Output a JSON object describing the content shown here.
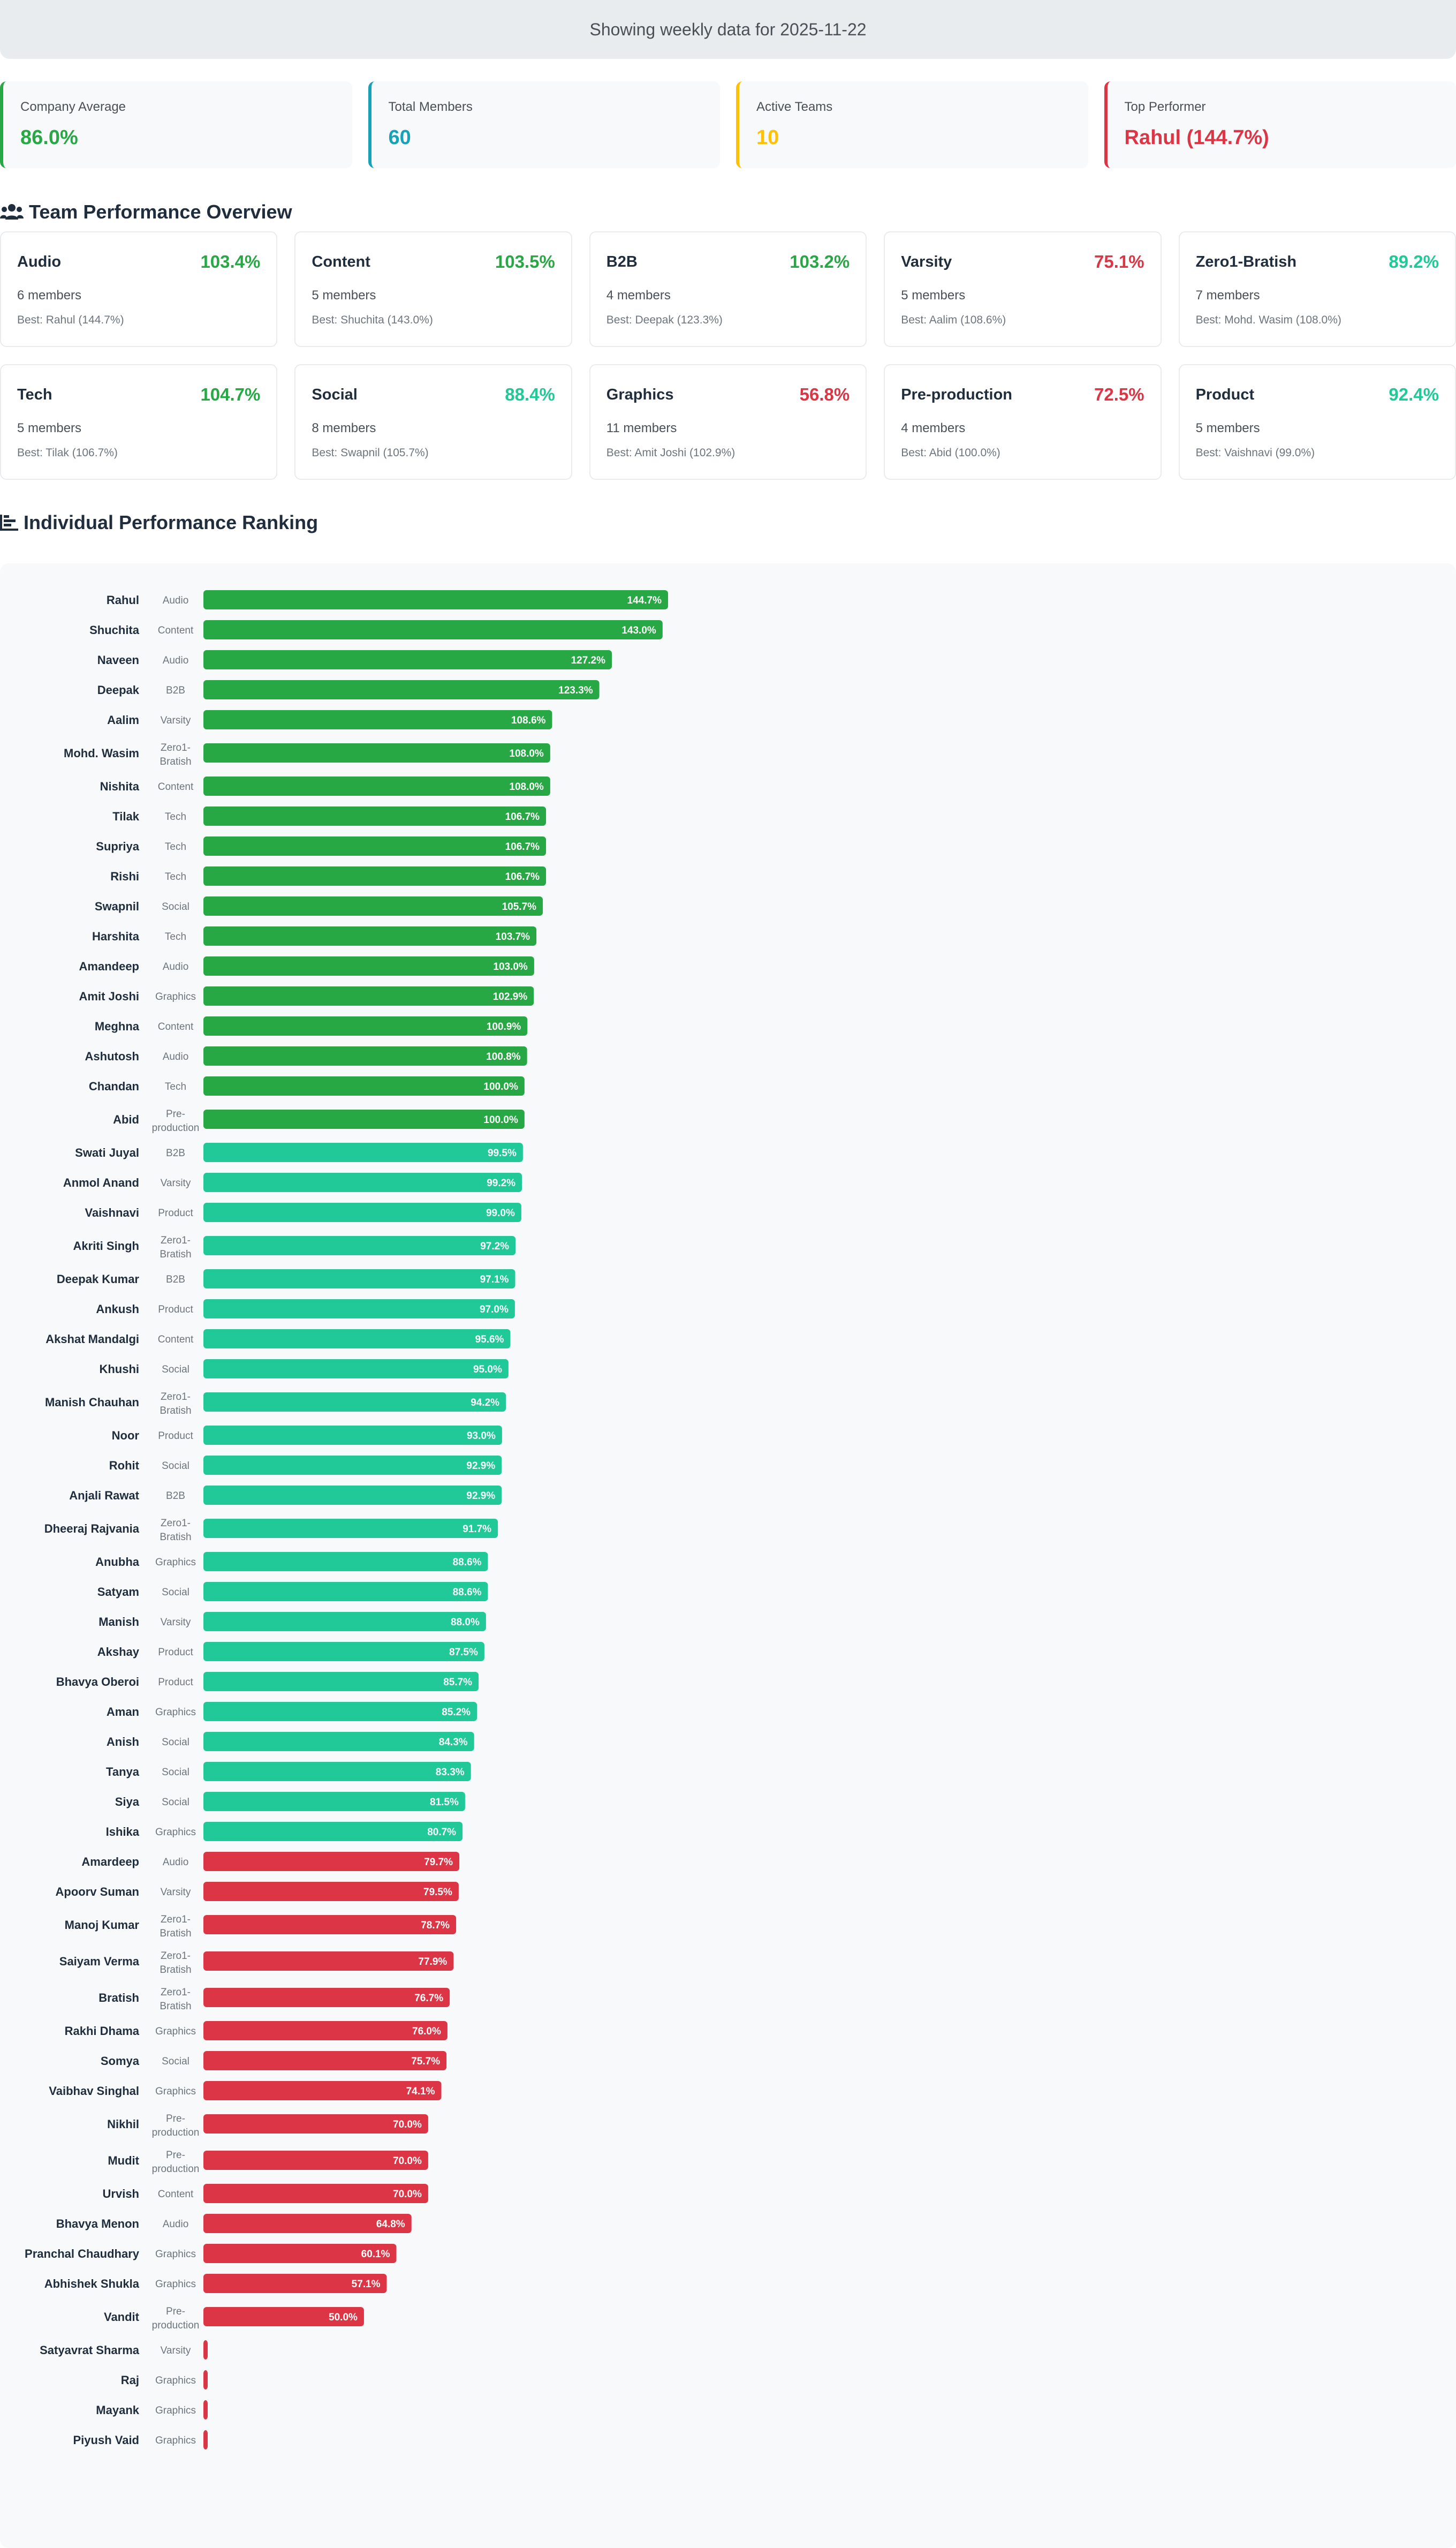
{
  "banner": {
    "text": "Showing weekly data for 2025-11-22"
  },
  "stats": [
    {
      "label": "Company Average",
      "value": "86.0%",
      "color": "#28a745"
    },
    {
      "label": "Total Members",
      "value": "60",
      "color": "#17a2b8"
    },
    {
      "label": "Active Teams",
      "value": "10",
      "color": "#ffc107"
    },
    {
      "label": "Top Performer",
      "value": "Rahul (144.7%)",
      "color": "#dc3545"
    }
  ],
  "teams_section": {
    "title": "Team Performance Overview",
    "icon": "users-icon"
  },
  "teams": [
    {
      "name": "Audio",
      "score": "103.4%",
      "members": "6 members",
      "best": "Best: Rahul (144.7%)",
      "color": "#28a745"
    },
    {
      "name": "Content",
      "score": "103.5%",
      "members": "5 members",
      "best": "Best: Shuchita (143.0%)",
      "color": "#28a745"
    },
    {
      "name": "B2B",
      "score": "103.2%",
      "members": "4 members",
      "best": "Best: Deepak (123.3%)",
      "color": "#28a745"
    },
    {
      "name": "Varsity",
      "score": "75.1%",
      "members": "5 members",
      "best": "Best: Aalim (108.6%)",
      "color": "#dc3545"
    },
    {
      "name": "Zero1-Bratish",
      "score": "89.2%",
      "members": "7 members",
      "best": "Best: Mohd. Wasim (108.0%)",
      "color": "#20c997"
    },
    {
      "name": "Tech",
      "score": "104.7%",
      "members": "5 members",
      "best": "Best: Tilak (106.7%)",
      "color": "#28a745"
    },
    {
      "name": "Social",
      "score": "88.4%",
      "members": "8 members",
      "best": "Best: Swapnil (105.7%)",
      "color": "#20c997"
    },
    {
      "name": "Graphics",
      "score": "56.8%",
      "members": "11 members",
      "best": "Best: Amit Joshi (102.9%)",
      "color": "#dc3545"
    },
    {
      "name": "Pre-production",
      "score": "72.5%",
      "members": "4 members",
      "best": "Best: Abid (100.0%)",
      "color": "#dc3545"
    },
    {
      "name": "Product",
      "score": "92.4%",
      "members": "5 members",
      "best": "Best: Vaishnavi (99.0%)",
      "color": "#20c997"
    }
  ],
  "ranking_section": {
    "title": "Individual Performance Ranking",
    "icon": "bar-chart-icon"
  },
  "chart_data": {
    "type": "bar",
    "orientation": "horizontal",
    "title": "Individual Performance Ranking",
    "xlim": [
      0,
      144.7
    ],
    "colors": {
      "high": "#28a745",
      "mid": "#20c997",
      "low": "#dc3545"
    },
    "bars": [
      {
        "name": "Rahul",
        "team": "Audio",
        "value": 144.7,
        "label": "144.7%"
      },
      {
        "name": "Shuchita",
        "team": "Content",
        "value": 143.0,
        "label": "143.0%"
      },
      {
        "name": "Naveen",
        "team": "Audio",
        "value": 127.2,
        "label": "127.2%"
      },
      {
        "name": "Deepak",
        "team": "B2B",
        "value": 123.3,
        "label": "123.3%"
      },
      {
        "name": "Aalim",
        "team": "Varsity",
        "value": 108.6,
        "label": "108.6%"
      },
      {
        "name": "Mohd. Wasim",
        "team": "Zero1-Bratish",
        "value": 108.0,
        "label": "108.0%"
      },
      {
        "name": "Nishita",
        "team": "Content",
        "value": 108.0,
        "label": "108.0%"
      },
      {
        "name": "Tilak",
        "team": "Tech",
        "value": 106.7,
        "label": "106.7%"
      },
      {
        "name": "Supriya",
        "team": "Tech",
        "value": 106.7,
        "label": "106.7%"
      },
      {
        "name": "Rishi",
        "team": "Tech",
        "value": 106.7,
        "label": "106.7%"
      },
      {
        "name": "Swapnil",
        "team": "Social",
        "value": 105.7,
        "label": "105.7%"
      },
      {
        "name": "Harshita",
        "team": "Tech",
        "value": 103.7,
        "label": "103.7%"
      },
      {
        "name": "Amandeep",
        "team": "Audio",
        "value": 103.0,
        "label": "103.0%"
      },
      {
        "name": "Amit Joshi",
        "team": "Graphics",
        "value": 102.9,
        "label": "102.9%"
      },
      {
        "name": "Meghna",
        "team": "Content",
        "value": 100.9,
        "label": "100.9%"
      },
      {
        "name": "Ashutosh",
        "team": "Audio",
        "value": 100.8,
        "label": "100.8%"
      },
      {
        "name": "Chandan",
        "team": "Tech",
        "value": 100.0,
        "label": "100.0%"
      },
      {
        "name": "Abid",
        "team": "Pre-production",
        "value": 100.0,
        "label": "100.0%"
      },
      {
        "name": "Swati Juyal",
        "team": "B2B",
        "value": 99.5,
        "label": "99.5%"
      },
      {
        "name": "Anmol Anand",
        "team": "Varsity",
        "value": 99.2,
        "label": "99.2%"
      },
      {
        "name": "Vaishnavi",
        "team": "Product",
        "value": 99.0,
        "label": "99.0%"
      },
      {
        "name": "Akriti Singh",
        "team": "Zero1-Bratish",
        "value": 97.2,
        "label": "97.2%"
      },
      {
        "name": "Deepak Kumar",
        "team": "B2B",
        "value": 97.1,
        "label": "97.1%"
      },
      {
        "name": "Ankush",
        "team": "Product",
        "value": 97.0,
        "label": "97.0%"
      },
      {
        "name": "Akshat Mandalgi",
        "team": "Content",
        "value": 95.6,
        "label": "95.6%"
      },
      {
        "name": "Khushi",
        "team": "Social",
        "value": 95.0,
        "label": "95.0%"
      },
      {
        "name": "Manish Chauhan",
        "team": "Zero1-Bratish",
        "value": 94.2,
        "label": "94.2%"
      },
      {
        "name": "Noor",
        "team": "Product",
        "value": 93.0,
        "label": "93.0%"
      },
      {
        "name": "Rohit",
        "team": "Social",
        "value": 92.9,
        "label": "92.9%"
      },
      {
        "name": "Anjali Rawat",
        "team": "B2B",
        "value": 92.9,
        "label": "92.9%"
      },
      {
        "name": "Dheeraj Rajvania",
        "team": "Zero1-Bratish",
        "value": 91.7,
        "label": "91.7%"
      },
      {
        "name": "Anubha",
        "team": "Graphics",
        "value": 88.6,
        "label": "88.6%"
      },
      {
        "name": "Satyam",
        "team": "Social",
        "value": 88.6,
        "label": "88.6%"
      },
      {
        "name": "Manish",
        "team": "Varsity",
        "value": 88.0,
        "label": "88.0%"
      },
      {
        "name": "Akshay",
        "team": "Product",
        "value": 87.5,
        "label": "87.5%"
      },
      {
        "name": "Bhavya Oberoi",
        "team": "Product",
        "value": 85.7,
        "label": "85.7%"
      },
      {
        "name": "Aman",
        "team": "Graphics",
        "value": 85.2,
        "label": "85.2%"
      },
      {
        "name": "Anish",
        "team": "Social",
        "value": 84.3,
        "label": "84.3%"
      },
      {
        "name": "Tanya",
        "team": "Social",
        "value": 83.3,
        "label": "83.3%"
      },
      {
        "name": "Siya",
        "team": "Social",
        "value": 81.5,
        "label": "81.5%"
      },
      {
        "name": "Ishika",
        "team": "Graphics",
        "value": 80.7,
        "label": "80.7%"
      },
      {
        "name": "Amardeep",
        "team": "Audio",
        "value": 79.7,
        "label": "79.7%"
      },
      {
        "name": "Apoorv Suman",
        "team": "Varsity",
        "value": 79.5,
        "label": "79.5%"
      },
      {
        "name": "Manoj Kumar",
        "team": "Zero1-Bratish",
        "value": 78.7,
        "label": "78.7%"
      },
      {
        "name": "Saiyam Verma",
        "team": "Zero1-Bratish",
        "value": 77.9,
        "label": "77.9%"
      },
      {
        "name": "Bratish",
        "team": "Zero1-Bratish",
        "value": 76.7,
        "label": "76.7%"
      },
      {
        "name": "Rakhi Dhama",
        "team": "Graphics",
        "value": 76.0,
        "label": "76.0%"
      },
      {
        "name": "Somya",
        "team": "Social",
        "value": 75.7,
        "label": "75.7%"
      },
      {
        "name": "Vaibhav Singhal",
        "team": "Graphics",
        "value": 74.1,
        "label": "74.1%"
      },
      {
        "name": "Nikhil",
        "team": "Pre-production",
        "value": 70.0,
        "label": "70.0%"
      },
      {
        "name": "Mudit",
        "team": "Pre-production",
        "value": 70.0,
        "label": "70.0%"
      },
      {
        "name": "Urvish",
        "team": "Content",
        "value": 70.0,
        "label": "70.0%"
      },
      {
        "name": "Bhavya Menon",
        "team": "Audio",
        "value": 64.8,
        "label": "64.8%"
      },
      {
        "name": "Pranchal Chaudhary",
        "team": "Graphics",
        "value": 60.1,
        "label": "60.1%"
      },
      {
        "name": "Abhishek Shukla",
        "team": "Graphics",
        "value": 57.1,
        "label": "57.1%"
      },
      {
        "name": "Vandit",
        "team": "Pre-production",
        "value": 50.0,
        "label": "50.0%"
      },
      {
        "name": "Satyavrat Sharma",
        "team": "Varsity",
        "value": 0,
        "label": ""
      },
      {
        "name": "Raj",
        "team": "Graphics",
        "value": 0,
        "label": ""
      },
      {
        "name": "Mayank",
        "team": "Graphics",
        "value": 0,
        "label": ""
      },
      {
        "name": "Piyush Vaid",
        "team": "Graphics",
        "value": 0,
        "label": ""
      }
    ]
  }
}
